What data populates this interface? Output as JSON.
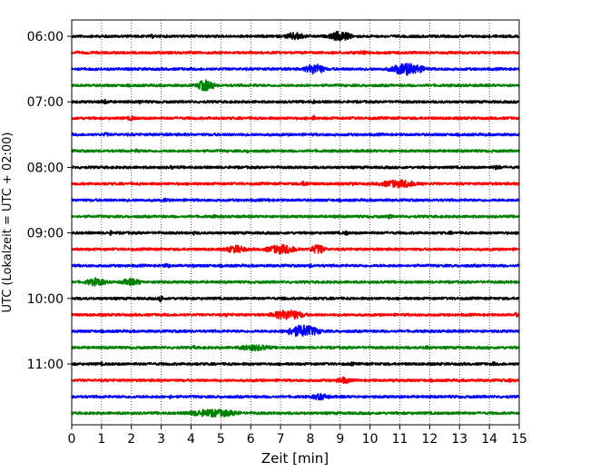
{
  "chart_data": {
    "type": "line",
    "title": "",
    "xlabel": "Zeit  [min]",
    "ylabel": "UTC (Lokalzeit = UTC + 02:00)",
    "xlim": [
      0,
      15
    ],
    "xticks": [
      0,
      1,
      2,
      3,
      4,
      5,
      6,
      7,
      8,
      9,
      10,
      11,
      12,
      13,
      14,
      15
    ],
    "xtick_labels": [
      "0",
      "1",
      "2",
      "3",
      "4",
      "5",
      "6",
      "7",
      "8",
      "9",
      "10",
      "11",
      "12",
      "13",
      "14",
      "15"
    ],
    "ytick_labels": [
      "06:00",
      "07:00",
      "08:00",
      "09:00",
      "10:00",
      "11:00"
    ],
    "grid": "vertical dotted lines at each minute",
    "colors": [
      "#000000",
      "#ff0000",
      "#0000ff",
      "#008000"
    ],
    "trace_interval_minutes": 15,
    "first_trace_time": "06:00",
    "series": [
      {
        "values": [
          [
            7.0,
            8.0,
            0.55
          ],
          [
            8.5,
            9.5,
            0.7
          ],
          [
            2.6,
            2.8,
            0.3
          ]
        ]
      },
      {
        "values": [
          [
            9.5,
            10.0,
            0.3
          ]
        ]
      },
      {
        "values": [
          [
            7.7,
            8.6,
            0.75
          ],
          [
            10.5,
            12.0,
            0.85
          ]
        ]
      },
      {
        "values": [
          [
            4.1,
            4.9,
            0.8
          ],
          [
            6.1,
            6.3,
            0.25
          ]
        ]
      },
      {
        "values": [
          [
            0.9,
            1.3,
            0.35
          ],
          [
            2.2,
            2.4,
            0.3
          ],
          [
            8.0,
            8.2,
            0.3
          ]
        ]
      },
      {
        "values": [
          [
            1.8,
            2.2,
            0.35
          ],
          [
            8.0,
            8.2,
            0.4
          ]
        ]
      },
      {
        "values": [
          [
            1.0,
            1.3,
            0.3
          ]
        ]
      },
      {
        "values": [
          [
            2.0,
            2.4,
            0.3
          ],
          [
            5.8,
            6.0,
            0.3
          ]
        ]
      },
      {
        "values": [
          [
            3.2,
            3.5,
            0.3
          ],
          [
            14.0,
            14.5,
            0.35
          ]
        ]
      },
      {
        "values": [
          [
            7.5,
            8.1,
            0.35
          ],
          [
            10.0,
            12.0,
            0.55
          ],
          [
            9.3,
            9.5,
            0.3
          ]
        ]
      },
      {
        "values": [
          [
            3.0,
            3.3,
            0.3
          ],
          [
            6.5,
            6.7,
            0.25
          ]
        ]
      },
      {
        "values": [
          [
            4.7,
            4.9,
            0.3
          ],
          [
            8.7,
            8.9,
            0.25
          ],
          [
            10.5,
            10.8,
            0.3
          ]
        ]
      },
      {
        "values": [
          [
            1.2,
            1.4,
            0.35
          ],
          [
            4.0,
            4.2,
            0.3
          ],
          [
            9.0,
            9.4,
            0.3
          ],
          [
            12.6,
            12.8,
            0.25
          ]
        ]
      },
      {
        "values": [
          [
            5.0,
            6.0,
            0.55
          ],
          [
            6.3,
            7.8,
            0.65
          ],
          [
            7.9,
            8.6,
            0.65
          ]
        ]
      },
      {
        "values": [
          [
            3.0,
            3.4,
            0.3
          ],
          [
            4.0,
            4.2,
            0.3
          ],
          [
            7.9,
            8.1,
            0.3
          ]
        ]
      },
      {
        "values": [
          [
            0.3,
            1.3,
            0.55
          ],
          [
            1.5,
            2.5,
            0.5
          ],
          [
            2.8,
            3.1,
            0.3
          ]
        ]
      },
      {
        "values": [
          [
            2.9,
            3.1,
            0.55
          ],
          [
            7.0,
            7.2,
            0.3
          ]
        ]
      },
      {
        "values": [
          [
            6.5,
            8.0,
            0.7
          ],
          [
            5.1,
            5.3,
            0.3
          ],
          [
            14.8,
            15.0,
            0.35
          ]
        ]
      },
      {
        "values": [
          [
            7.0,
            8.5,
            0.85
          ],
          [
            3.7,
            3.9,
            0.25
          ]
        ]
      },
      {
        "values": [
          [
            4.0,
            4.2,
            0.3
          ],
          [
            5.3,
            7.0,
            0.45
          ],
          [
            11.8,
            12.0,
            0.35
          ]
        ]
      },
      {
        "values": [
          [
            9.3,
            9.5,
            0.3
          ],
          [
            14.0,
            14.3,
            0.3
          ],
          [
            0.9,
            1.1,
            0.25
          ]
        ]
      },
      {
        "values": [
          [
            8.7,
            9.5,
            0.45
          ],
          [
            10.7,
            10.9,
            0.3
          ],
          [
            14.6,
            14.8,
            0.3
          ]
        ]
      },
      {
        "values": [
          [
            7.9,
            8.8,
            0.45
          ],
          [
            3.2,
            3.4,
            0.3
          ]
        ]
      },
      {
        "values": [
          [
            3.5,
            6.0,
            0.55
          ],
          [
            12.9,
            13.1,
            0.3
          ]
        ]
      }
    ]
  }
}
